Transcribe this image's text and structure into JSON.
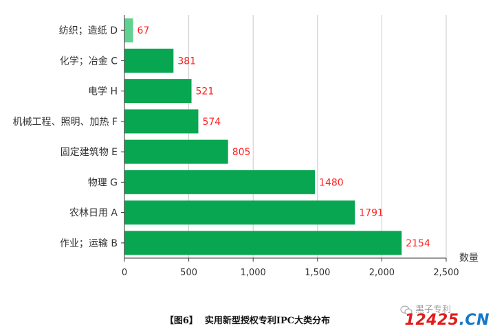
{
  "colors": {
    "bar": "#08a650",
    "bar_highlight": "#5fd191",
    "value_label": "#ff2020",
    "grid": "#c8c8c8",
    "axis": "#333333"
  },
  "chart_data": {
    "type": "bar",
    "orientation": "horizontal",
    "categories": [
      "纺织；造纸 D",
      "化学；冶金 C",
      "电学 H",
      "机械工程、照明、加热 F",
      "固定建筑物 E",
      "物理 G",
      "农林日用 A",
      "作业；运输 B"
    ],
    "values": [
      67,
      381,
      521,
      574,
      805,
      1480,
      1791,
      2154
    ],
    "highlight_index": 0,
    "xlabel": "数量",
    "xlim": [
      0,
      2500
    ],
    "xticks": [
      0,
      500,
      1000,
      1500,
      2000,
      2500
    ],
    "xtick_labels": [
      "0",
      "500",
      "1,000",
      "1,500",
      "2,000",
      "2,500"
    ],
    "grid": true
  },
  "caption": {
    "number": "【图6】",
    "title": "实用新型授权专利IPC大类分布"
  },
  "watermark": {
    "top": "黑子专利",
    "num_a": "12425",
    "num_b": ".CN"
  }
}
